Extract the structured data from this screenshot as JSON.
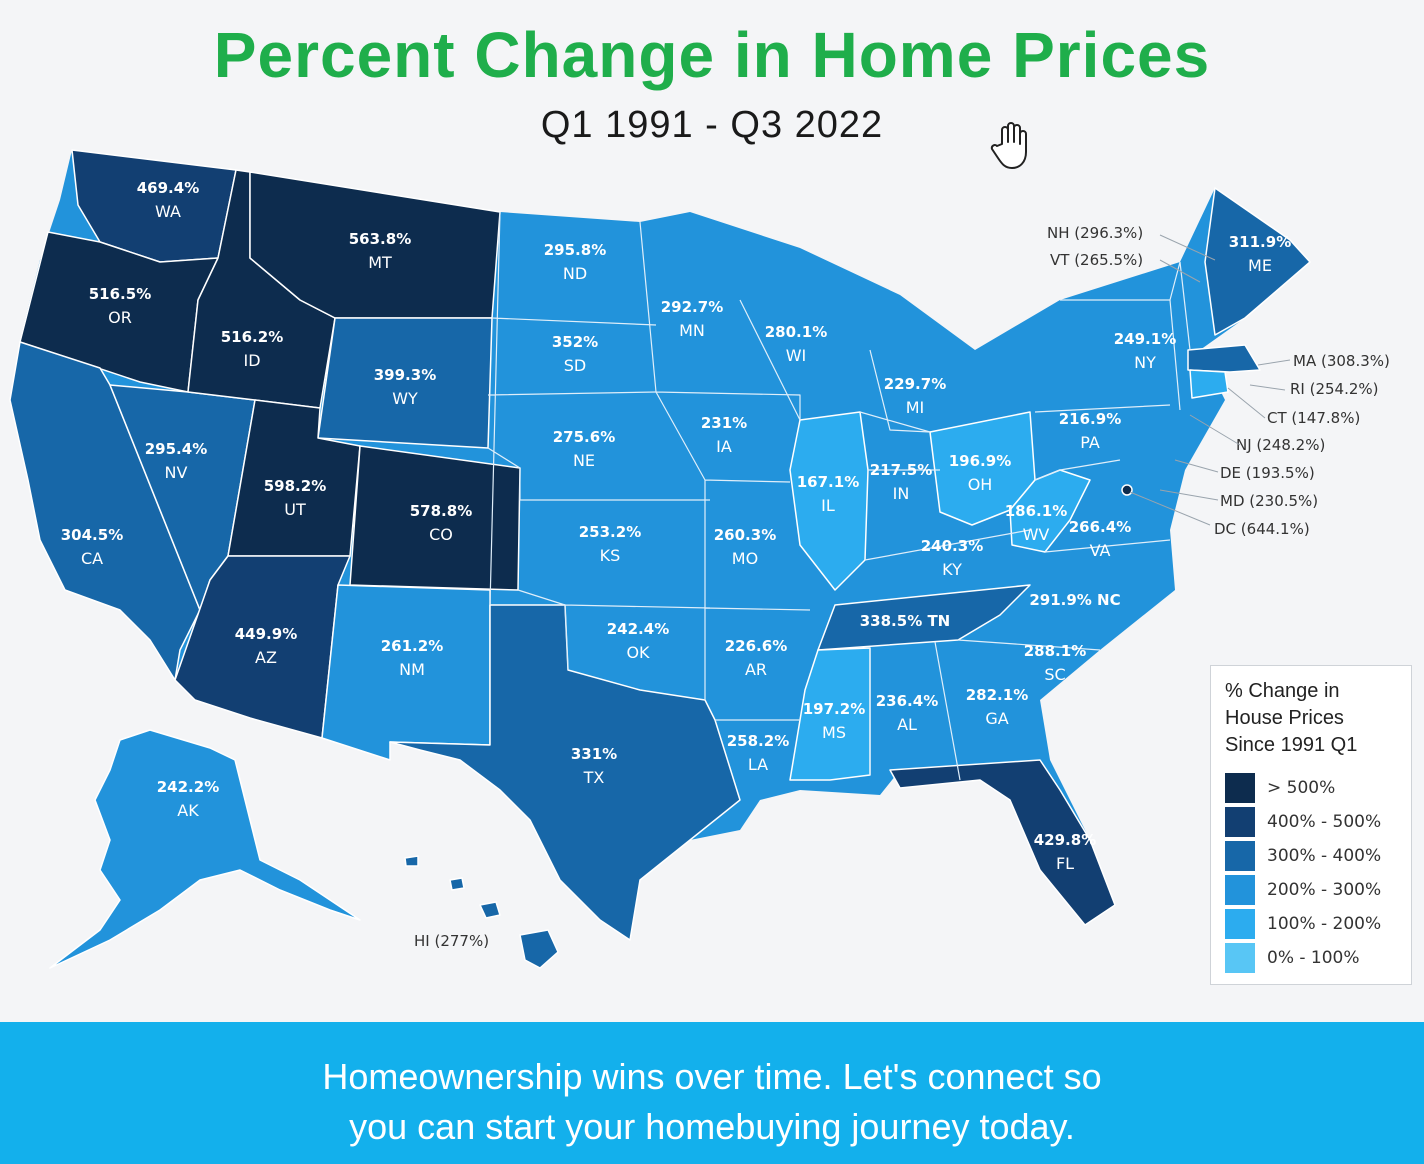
{
  "header": {
    "title": "Percent Change in Home Prices",
    "subtitle": "Q1 1991 - Q3 2022"
  },
  "legend": {
    "title": "% Change in\nHouse Prices\nSince 1991 Q1",
    "items": [
      {
        "label": "> 500%",
        "color": "#0d2c4e"
      },
      {
        "label": "400% - 500%",
        "color": "#123f72"
      },
      {
        "label": "300% - 400%",
        "color": "#1767a8"
      },
      {
        "label": "200% - 300%",
        "color": "#2293db"
      },
      {
        "label": "100% - 200%",
        "color": "#2cacef"
      },
      {
        "label": "0% - 100%",
        "color": "#58c6f5"
      }
    ]
  },
  "states": {
    "WA": {
      "name": "WA",
      "value": "469.4%"
    },
    "OR": {
      "name": "OR",
      "value": "516.5%"
    },
    "CA": {
      "name": "CA",
      "value": "304.5%"
    },
    "ID": {
      "name": "ID",
      "value": "516.2%"
    },
    "NV": {
      "name": "NV",
      "value": "295.4%"
    },
    "MT": {
      "name": "MT",
      "value": "563.8%"
    },
    "WY": {
      "name": "WY",
      "value": "399.3%"
    },
    "UT": {
      "name": "UT",
      "value": "598.2%"
    },
    "CO": {
      "name": "CO",
      "value": "578.8%"
    },
    "AZ": {
      "name": "AZ",
      "value": "449.9%"
    },
    "NM": {
      "name": "NM",
      "value": "261.2%"
    },
    "ND": {
      "name": "ND",
      "value": "295.8%"
    },
    "SD": {
      "name": "SD",
      "value": "352%"
    },
    "NE": {
      "name": "NE",
      "value": "275.6%"
    },
    "KS": {
      "name": "KS",
      "value": "253.2%"
    },
    "OK": {
      "name": "OK",
      "value": "242.4%"
    },
    "TX": {
      "name": "TX",
      "value": "331%"
    },
    "MN": {
      "name": "MN",
      "value": "292.7%"
    },
    "IA": {
      "name": "IA",
      "value": "231%"
    },
    "MO": {
      "name": "MO",
      "value": "260.3%"
    },
    "AR": {
      "name": "AR",
      "value": "226.6%"
    },
    "LA": {
      "name": "LA",
      "value": "258.2%"
    },
    "WI": {
      "name": "WI",
      "value": "280.1%"
    },
    "IL": {
      "name": "IL",
      "value": "167.1%"
    },
    "MS": {
      "name": "MS",
      "value": "197.2%"
    },
    "MI": {
      "name": "MI",
      "value": "229.7%"
    },
    "IN": {
      "name": "IN",
      "value": "217.5%"
    },
    "KY": {
      "name": "KY",
      "value": "240.3%"
    },
    "TN": {
      "name": "TN",
      "value": "338.5%"
    },
    "AL": {
      "name": "AL",
      "value": "236.4%"
    },
    "OH": {
      "name": "OH",
      "value": "196.9%"
    },
    "WV": {
      "name": "WV",
      "value": "186.1%"
    },
    "VA": {
      "name": "VA",
      "value": "266.4%"
    },
    "NC": {
      "name": "NC",
      "value": "291.9%"
    },
    "SC": {
      "name": "SC",
      "value": "288.1%"
    },
    "GA": {
      "name": "GA",
      "value": "282.1%"
    },
    "FL": {
      "name": "FL",
      "value": "429.8%"
    },
    "PA": {
      "name": "PA",
      "value": "216.9%"
    },
    "NY": {
      "name": "NY",
      "value": "249.1%"
    },
    "ME": {
      "name": "ME",
      "value": "311.9%"
    },
    "AK": {
      "name": "AK",
      "value": "242.2%"
    }
  },
  "external_labels": {
    "NH": "NH (296.3%)",
    "VT": "VT (265.5%)",
    "MA": "MA (308.3%)",
    "RI": "RI (254.2%)",
    "CT": "CT (147.8%)",
    "NJ": "NJ  (248.2%)",
    "DE": "DE (193.5%)",
    "MD": "MD (230.5%)",
    "DC": "DC (644.1%)",
    "HI": "HI (277%)"
  },
  "footer": {
    "text": "Homeownership wins over time. Let's connect so\nyou can start your homebuying journey today."
  },
  "icons": {
    "cursor": "hand-pointer-icon"
  }
}
